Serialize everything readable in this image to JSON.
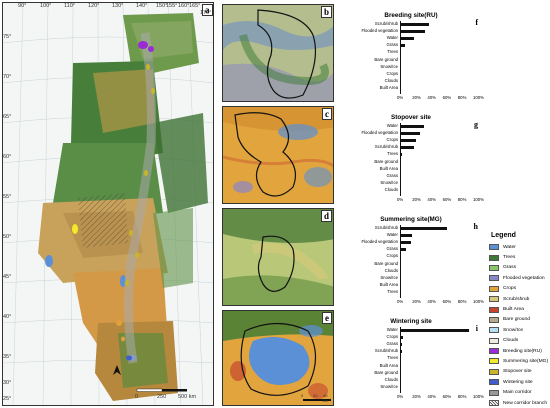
{
  "main_map": {
    "panel_label": "a",
    "lon_labels": [
      "90°",
      "100°",
      "110°",
      "120°",
      "130°",
      "140°",
      "150°",
      "155°",
      "160°",
      "165°",
      "170°"
    ],
    "lat_labels": [
      "75°",
      "70°",
      "65°",
      "60°",
      "55°",
      "50°",
      "45°",
      "40°",
      "35°",
      "30°",
      "25°"
    ],
    "scale": {
      "ticks": [
        "0",
        "250",
        "500 km"
      ]
    }
  },
  "insets": [
    {
      "label": "b"
    },
    {
      "label": "c"
    },
    {
      "label": "d"
    },
    {
      "label": "e",
      "scale": {
        "ticks": [
          "0",
          "20",
          "40 km"
        ]
      }
    }
  ],
  "chart_data": [
    {
      "type": "bar",
      "label": "f",
      "title": "Breeding site(RU)",
      "categories": [
        "Scrub/shrub",
        "Flooded vegetation",
        "Water",
        "Grass",
        "Trees",
        "Bare ground",
        "Snow/Ice",
        "Crops",
        "Clouds",
        "Built Area"
      ],
      "values": [
        38,
        33,
        18,
        6,
        1,
        1,
        1,
        1,
        1,
        1
      ],
      "xticks": [
        "0%",
        "20%",
        "40%",
        "60%",
        "80%",
        "100%"
      ],
      "xlim": [
        0,
        100
      ]
    },
    {
      "type": "bar",
      "label": "g",
      "title": "Stopover site",
      "categories": [
        "Water",
        "Flooded vegetation",
        "Crops",
        "Scrub/shrub",
        "Trees",
        "Bare ground",
        "Built Area",
        "Grass",
        "Snow/Ice",
        "Clouds"
      ],
      "values": [
        32,
        26,
        21,
        18,
        3,
        1,
        1,
        1,
        0.5,
        0.5
      ],
      "xticks": [
        "0%",
        "20%",
        "40%",
        "60%",
        "80%",
        "100%"
      ],
      "xlim": [
        0,
        100
      ]
    },
    {
      "type": "bar",
      "label": "h",
      "title": "Summering site(MG)",
      "categories": [
        "Scrub/shrub",
        "Water",
        "Flooded vegetation",
        "Grass",
        "Crops",
        "Bare ground",
        "Clouds",
        "Snow/Ice",
        "Built Area",
        "Trees"
      ],
      "values": [
        62,
        16,
        14,
        8,
        1,
        0.5,
        0.5,
        0.5,
        0.5,
        0.5
      ],
      "xticks": [
        "0%",
        "20%",
        "40%",
        "60%",
        "80%",
        "100%"
      ],
      "xlim": [
        0,
        100
      ]
    },
    {
      "type": "bar",
      "label": "i",
      "title": "Wintering site",
      "categories": [
        "Water",
        "Crops",
        "Grass",
        "Scrub/shrub",
        "Trees",
        "Built Area",
        "Bare ground",
        "Clouds",
        "Snow/Ice"
      ],
      "values": [
        91,
        4,
        2,
        2,
        1,
        0.5,
        0.5,
        0.5,
        0.5
      ],
      "xticks": [
        "0%",
        "20%",
        "40%",
        "60%",
        "80%",
        "100%"
      ],
      "xlim": [
        0,
        100
      ]
    }
  ],
  "legend": {
    "title": "Legend",
    "items": [
      {
        "label": "Water",
        "color": "#5b8fd6"
      },
      {
        "label": "Trees",
        "color": "#3a7a34"
      },
      {
        "label": "Grass",
        "color": "#8ac66a"
      },
      {
        "label": "Flooded vegetation",
        "color": "#8a86c8"
      },
      {
        "label": "Crops",
        "color": "#e2a53e"
      },
      {
        "label": "Scrub/shrub",
        "color": "#d9c87a"
      },
      {
        "label": "Built Area",
        "color": "#c4462e"
      },
      {
        "label": "Bare ground",
        "color": "#b9a78f"
      },
      {
        "label": "Snow/Ice",
        "color": "#b5e0f4"
      },
      {
        "label": "Clouds",
        "color": "#f1eae0"
      },
      {
        "label": "Breeding site(RU)",
        "color": "#9a2bd6"
      },
      {
        "label": "Summering site(MG)",
        "color": "#f5ea2a"
      },
      {
        "label": "Stopover site",
        "color": "#c9b52a"
      },
      {
        "label": "Wintering site",
        "color": "#3f5fcf"
      },
      {
        "label": "Main corridor",
        "color": "#999999"
      },
      {
        "label": "New corridor branch",
        "color": "#ffffff"
      }
    ]
  }
}
